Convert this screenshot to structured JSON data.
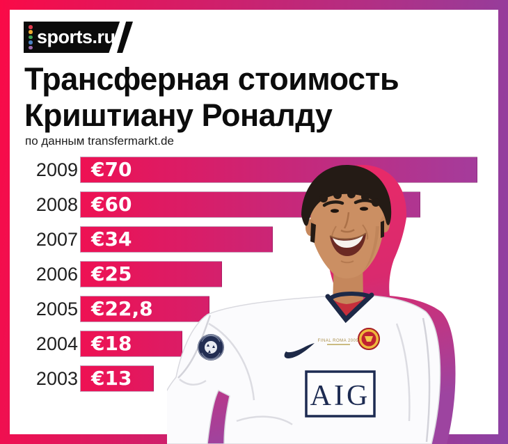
{
  "frame": {
    "border_gradient": [
      "#fa0a47",
      "#8c42a4"
    ]
  },
  "header": {
    "logo_text": "sports.ru",
    "logo_dot_colors": [
      "#e23b4e",
      "#efa92f",
      "#3fa757",
      "#4a82c4",
      "#a06cb0"
    ]
  },
  "title": {
    "line1": "Трансферная стоимость",
    "line2": "Криштиану Роналду"
  },
  "source_note": "по данным transfermarkt.de",
  "chart_data": {
    "type": "bar",
    "orientation": "horizontal",
    "title": "Трансферная стоимость Криштиану Роналду",
    "subtitle": "по данным transfermarkt.de",
    "unit": "€ million",
    "categories": [
      "2009",
      "2008",
      "2007",
      "2006",
      "2005",
      "2004",
      "2003"
    ],
    "values": [
      70,
      60,
      34,
      25,
      22.8,
      18,
      13
    ],
    "value_labels": [
      "€70",
      "€60",
      "€34",
      "€25",
      "€22,8",
      "€18",
      "€13"
    ],
    "xlim": [
      0,
      70
    ],
    "grid": false,
    "legend": false,
    "bar_color_start": "#ee1153",
    "bar_color_end": "#a43c9c"
  },
  "figure": {
    "description": "Cristiano Ronaldo smiling in white Manchester United away shirt with pink offset silhouette",
    "jersey": {
      "sponsor": "AIG",
      "chest_text": "FINAL ROMA 2009"
    }
  }
}
